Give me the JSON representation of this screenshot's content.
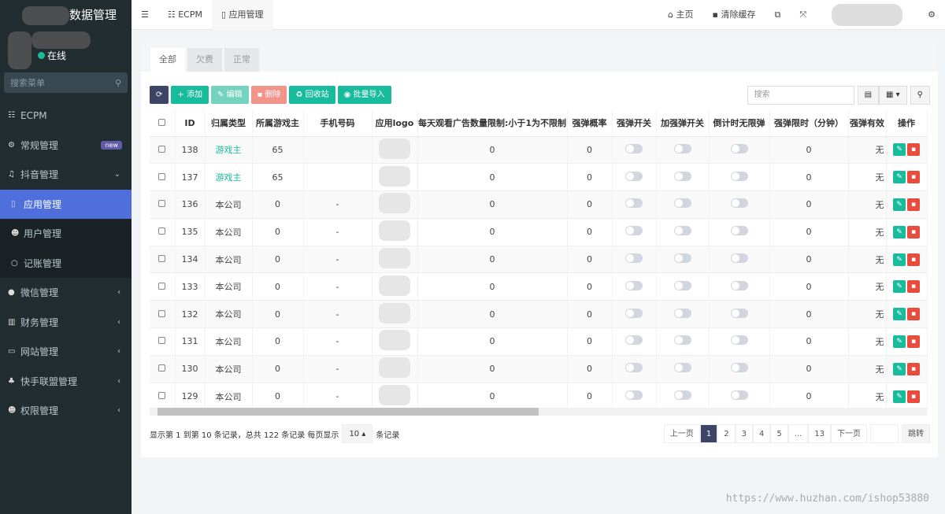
{
  "app": {
    "title": "数据管理",
    "status": "在线",
    "menu_search_placeholder": "搜索菜单"
  },
  "sidebar": {
    "items": [
      {
        "label": "ECPM",
        "icon": "list-icon"
      },
      {
        "label": "常规管理",
        "icon": "cogs-icon",
        "badge": "new"
      },
      {
        "label": "抖音管理",
        "icon": "music-icon",
        "expanded": true
      },
      {
        "label": "应用管理",
        "icon": "mobile-icon",
        "active": true,
        "sub": true
      },
      {
        "label": "用户管理",
        "icon": "users-icon",
        "sub": true
      },
      {
        "label": "记账管理",
        "icon": "circle-icon",
        "sub": true
      },
      {
        "label": "微信管理",
        "icon": "wechat-icon"
      },
      {
        "label": "财务管理",
        "icon": "bar-chart-icon"
      },
      {
        "label": "网站管理",
        "icon": "desktop-icon"
      },
      {
        "label": "快手联盟管理",
        "icon": "cubes-icon"
      },
      {
        "label": "权限管理",
        "icon": "users-icon"
      }
    ]
  },
  "topbar": {
    "tabs": [
      "ECPM",
      "应用管理"
    ],
    "home": "主页",
    "clear_cache": "清除缓存"
  },
  "tabs": [
    "全部",
    "欠费",
    "正常"
  ],
  "toolbar": {
    "add": "添加",
    "edit": "编辑",
    "delete": "删除",
    "recycle": "回收站",
    "import": "批量导入",
    "search_placeholder": "搜索"
  },
  "colors": {
    "primary": "#18bc9c",
    "dark": "#3c4566",
    "danger": "#e74c3c",
    "sidebar": "#222d32",
    "active": "#4e6fdc"
  },
  "table": {
    "columns": [
      "ID",
      "归属类型",
      "所属游戏主",
      "手机号码",
      "应用logo",
      "每天观看广告数量限制:小于1为不限制",
      "强弹概率",
      "强弹开关",
      "加强弹开关",
      "倒计时无限弹",
      "强弹限时（分钟）",
      "强弹有效",
      "操作"
    ],
    "rows": [
      {
        "id": "138",
        "type": "游戏主",
        "owner": "65",
        "phone": "",
        "limit": "0",
        "prob": "0",
        "time": "0",
        "valid": "无"
      },
      {
        "id": "137",
        "type": "游戏主",
        "owner": "65",
        "phone": "",
        "limit": "0",
        "prob": "0",
        "time": "0",
        "valid": "无"
      },
      {
        "id": "136",
        "type": "本公司",
        "owner": "0",
        "phone": "-",
        "limit": "0",
        "prob": "0",
        "time": "0",
        "valid": "无"
      },
      {
        "id": "135",
        "type": "本公司",
        "owner": "0",
        "phone": "-",
        "limit": "0",
        "prob": "0",
        "time": "0",
        "valid": "无"
      },
      {
        "id": "134",
        "type": "本公司",
        "owner": "0",
        "phone": "-",
        "limit": "0",
        "prob": "0",
        "time": "0",
        "valid": "无"
      },
      {
        "id": "133",
        "type": "本公司",
        "owner": "0",
        "phone": "-",
        "limit": "0",
        "prob": "0",
        "time": "0",
        "valid": "无"
      },
      {
        "id": "132",
        "type": "本公司",
        "owner": "0",
        "phone": "-",
        "limit": "0",
        "prob": "0",
        "time": "0",
        "valid": "无"
      },
      {
        "id": "131",
        "type": "本公司",
        "owner": "0",
        "phone": "-",
        "limit": "0",
        "prob": "0",
        "time": "0",
        "valid": "无"
      },
      {
        "id": "130",
        "type": "本公司",
        "owner": "0",
        "phone": "-",
        "limit": "0",
        "prob": "0",
        "time": "0",
        "valid": "无"
      },
      {
        "id": "129",
        "type": "本公司",
        "owner": "0",
        "phone": "-",
        "limit": "0",
        "prob": "0",
        "time": "0",
        "valid": "无"
      }
    ]
  },
  "footer": {
    "summary": "显示第 1 到第 10 条记录，总共 122 条记录 每页显示",
    "page_size": "10",
    "suffix": "条记录"
  },
  "pager": {
    "prev": "上一页",
    "pages": [
      "1",
      "2",
      "3",
      "4",
      "5",
      "...",
      "13"
    ],
    "current": "1",
    "next": "下一页",
    "jump": "跳转"
  },
  "watermark": "https://www.huzhan.com/ishop53880"
}
